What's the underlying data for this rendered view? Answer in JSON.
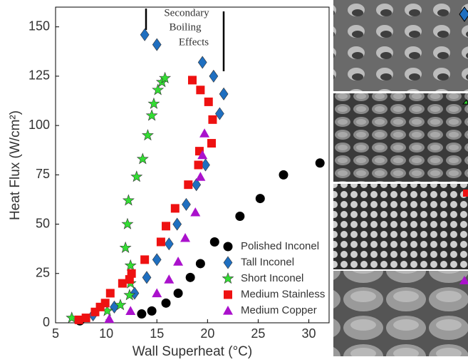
{
  "chart_data": {
    "type": "scatter",
    "xlabel": "Wall Superheat (°C)",
    "ylabel": "Heat Flux (W/cm²)",
    "annotation": [
      "Secondary",
      "Boiling",
      "Effects"
    ],
    "xlim": [
      5,
      32
    ],
    "ylim": [
      0,
      160
    ],
    "xticks": [
      5,
      10,
      15,
      20,
      25,
      30
    ],
    "yticks": [
      0,
      25,
      50,
      75,
      100,
      125,
      150
    ],
    "series": [
      {
        "name": "Polished Inconel",
        "color": "#000000",
        "marker": "circle",
        "x": [
          7.4,
          13.5,
          14.5,
          15.9,
          17.1,
          18.3,
          19.3,
          20.7,
          23.2,
          25.2,
          27.5,
          31.1
        ],
        "values": [
          1,
          4.5,
          6,
          10,
          15,
          23,
          30,
          41,
          54,
          63,
          75,
          81
        ]
      },
      {
        "name": "Tall Inconel",
        "color": "#1f6fc0",
        "marker": "diamond",
        "x": [
          8.7,
          10.8,
          12.8,
          14,
          15,
          16.2,
          17,
          17.9,
          18.9,
          19.8,
          19.5,
          20.6,
          21.2,
          21.6,
          13.8,
          15
        ],
        "values": [
          4,
          8,
          15,
          23,
          32,
          40,
          50,
          60,
          70,
          80,
          132,
          125,
          106,
          116,
          146,
          141
        ]
      },
      {
        "name": "Short Inconel",
        "color": "#33dd33",
        "marker": "star",
        "x": [
          6.6,
          10.1,
          11.4,
          12.3,
          12.4,
          12.4,
          11.9,
          12.1,
          12.2,
          13,
          13.6,
          14.1,
          14.5,
          14.7,
          15.1,
          15.5,
          15.8
        ],
        "values": [
          2.5,
          6,
          9,
          14,
          20,
          29,
          38,
          50,
          62,
          74,
          83,
          95,
          105,
          111,
          118,
          122,
          124
        ]
      },
      {
        "name": "Medium Stainless",
        "color": "#ee1111",
        "marker": "square",
        "x": [
          7.3,
          8,
          8.9,
          9.4,
          9.9,
          10.4,
          11.6,
          12.3,
          12.5,
          13.8,
          15.4,
          15.9,
          16.8,
          18.1,
          19.1,
          19.2,
          20.4,
          20.5,
          20.1,
          19.3,
          18.5
        ],
        "values": [
          1.5,
          2.5,
          5.5,
          8,
          10,
          15,
          20,
          22,
          25,
          32,
          41,
          49,
          58,
          70,
          80,
          87,
          91,
          103,
          112,
          118,
          123
        ]
      },
      {
        "name": "Medium Copper",
        "color": "#aa11cc",
        "marker": "triangle",
        "x": [
          10.3,
          12.4,
          15,
          16.2,
          17.1,
          17.8,
          18.8,
          19.3,
          19.5,
          19.7
        ],
        "values": [
          2,
          6,
          15,
          22,
          31,
          43,
          56,
          74,
          85,
          96
        ]
      }
    ]
  }
}
